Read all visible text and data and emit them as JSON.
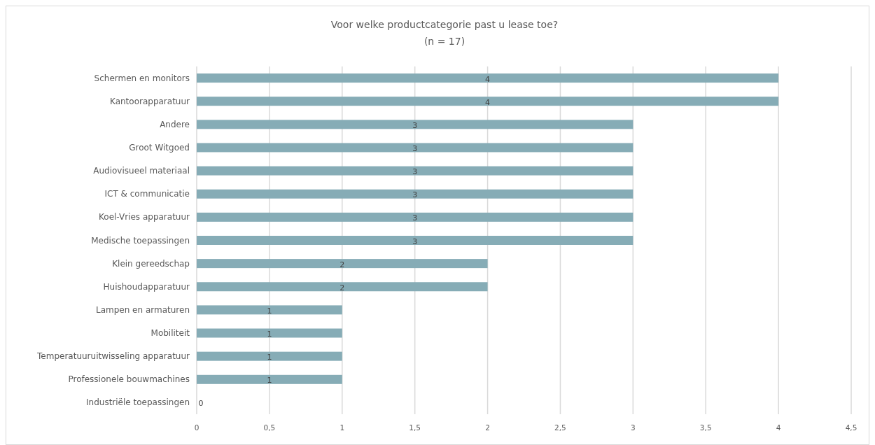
{
  "chart_data": {
    "type": "bar",
    "orientation": "horizontal",
    "title": "Voor welke productcategorie past u lease toe?",
    "subtitle": "(n = 17)",
    "categories": [
      "Schermen en monitors",
      "Kantoorapparatuur",
      "Andere",
      "Groot Witgoed",
      "Audiovisueel materiaal",
      "ICT & communicatie",
      "Koel-Vries apparatuur",
      "Medische toepassingen",
      "Klein gereedschap",
      "Huishoudapparatuur",
      "Lampen en armaturen",
      "Mobiliteit",
      "Temperatuuruitwisseling apparatuur",
      "Professionele bouwmachines",
      "Industriële toepassingen"
    ],
    "values": [
      4,
      4,
      3,
      3,
      3,
      3,
      3,
      3,
      2,
      2,
      1,
      1,
      1,
      1,
      0
    ],
    "color": "#86acb6",
    "xlim": [
      0,
      4.5
    ],
    "xticks": [
      0,
      {
        "value": 0.5,
        "label": "0,5"
      },
      1,
      {
        "value": 1.5,
        "label": "1,5"
      },
      2,
      {
        "value": 2.5,
        "label": "2,5"
      },
      3,
      {
        "value": 3.5,
        "label": "3,5"
      },
      4,
      {
        "value": 4.5,
        "label": "4,5"
      }
    ],
    "grid": "x",
    "data_labels": true
  }
}
